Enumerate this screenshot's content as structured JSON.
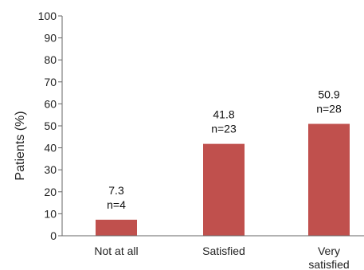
{
  "chart_data": {
    "type": "bar",
    "title": "",
    "xlabel": "",
    "ylabel": "Patients (%)",
    "ylim": [
      0,
      100
    ],
    "yticks": [
      0,
      10,
      20,
      30,
      40,
      50,
      60,
      70,
      80,
      90,
      100
    ],
    "grid": false,
    "legend": "none",
    "bar_color": "#c0504d",
    "categories": [
      [
        "Not at all"
      ],
      [
        "Satisfied"
      ],
      [
        "Very",
        "satisfied"
      ]
    ],
    "values": [
      7.3,
      41.8,
      50.9
    ],
    "data_labels": [
      [
        "7.3",
        "n=4"
      ],
      [
        "41.8",
        "n=23"
      ],
      [
        "50.9",
        "n=28"
      ]
    ]
  }
}
